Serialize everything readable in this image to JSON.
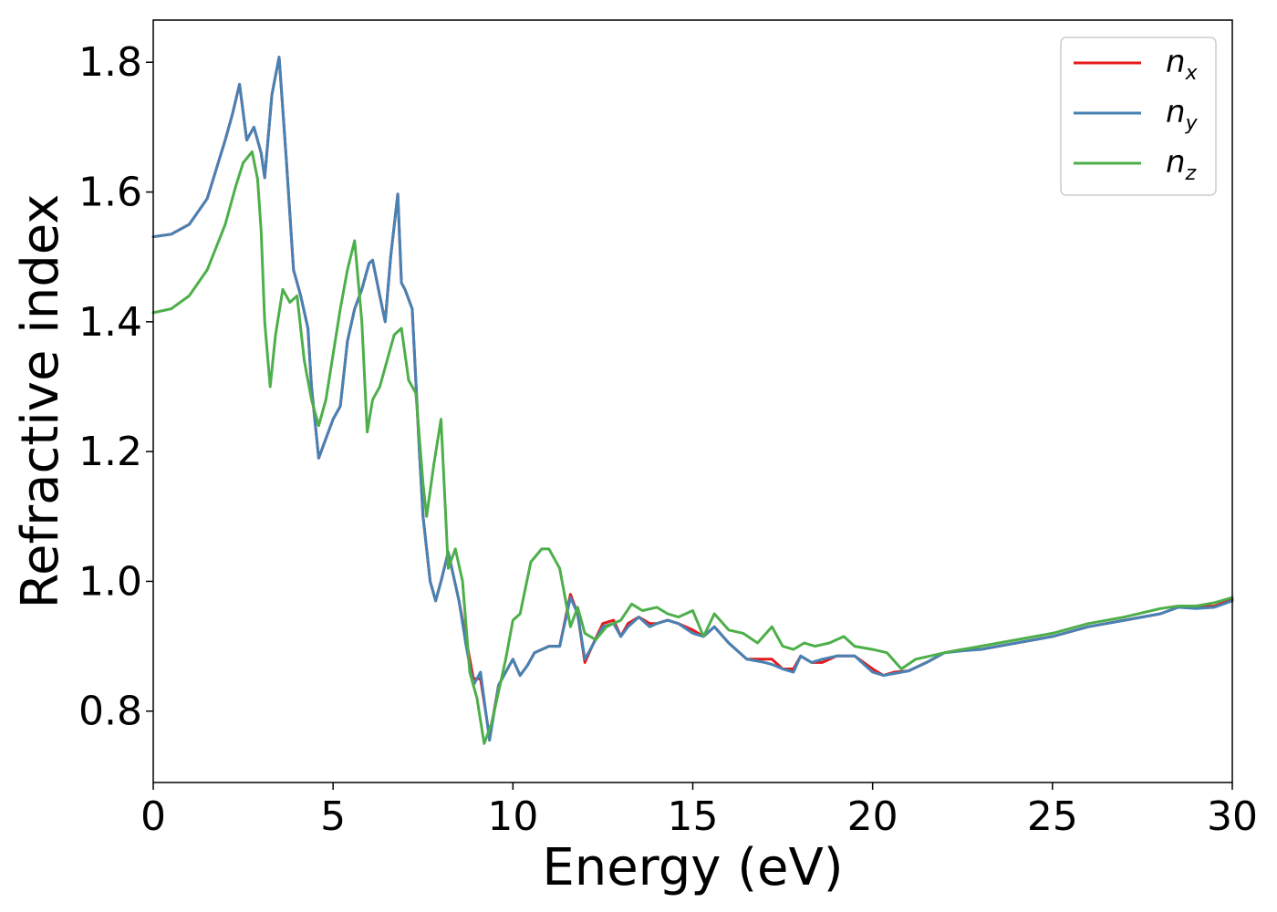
{
  "chart_data": {
    "type": "line",
    "title": "",
    "xlabel": "Energy (eV)",
    "ylabel": "Refractive index",
    "xlim": [
      0,
      30
    ],
    "ylim": [
      0.69,
      1.865
    ],
    "xticks": [
      0,
      5,
      10,
      15,
      20,
      25,
      30
    ],
    "xtick_labels": [
      "0",
      "5",
      "10",
      "15",
      "20",
      "25",
      "30"
    ],
    "yticks": [
      0.8,
      1.0,
      1.2,
      1.4,
      1.6,
      1.8
    ],
    "ytick_labels": [
      "0.8",
      "1.0",
      "1.2",
      "1.4",
      "1.6",
      "1.8"
    ],
    "grid": false,
    "legend_position": "top-right",
    "series": [
      {
        "name": "n_x",
        "legend_main": "n",
        "legend_sub": "x",
        "color": "#e41a1c",
        "x": [
          0,
          0.5,
          1.0,
          1.5,
          2.0,
          2.2,
          2.4,
          2.6,
          2.8,
          3.0,
          3.1,
          3.3,
          3.5,
          3.7,
          3.9,
          4.1,
          4.3,
          4.4,
          4.6,
          4.8,
          5.0,
          5.2,
          5.4,
          5.6,
          5.8,
          6.0,
          6.1,
          6.3,
          6.45,
          6.6,
          6.8,
          6.9,
          7.0,
          7.2,
          7.4,
          7.5,
          7.7,
          7.85,
          8.0,
          8.2,
          8.5,
          8.7,
          8.9,
          9.1,
          9.35,
          9.6,
          9.8,
          10.0,
          10.2,
          10.4,
          10.6,
          11.0,
          11.3,
          11.6,
          11.8,
          12.0,
          12.2,
          12.5,
          12.8,
          13.0,
          13.2,
          13.5,
          13.8,
          14.0,
          14.3,
          14.6,
          15.0,
          15.3,
          15.6,
          16.0,
          16.5,
          17.0,
          17.2,
          17.5,
          17.8,
          18.0,
          18.3,
          18.6,
          19.0,
          19.5,
          20.0,
          20.3,
          20.6,
          21.0,
          21.5,
          22.0,
          22.5,
          23.0,
          24.0,
          25.0,
          26.0,
          27.0,
          28.0,
          28.5,
          29.0,
          29.5,
          30.0
        ],
        "y": [
          1.531,
          1.535,
          1.55,
          1.59,
          1.68,
          1.72,
          1.766,
          1.68,
          1.7,
          1.66,
          1.622,
          1.75,
          1.808,
          1.65,
          1.48,
          1.44,
          1.39,
          1.3,
          1.19,
          1.22,
          1.25,
          1.27,
          1.37,
          1.42,
          1.45,
          1.49,
          1.495,
          1.44,
          1.4,
          1.5,
          1.597,
          1.46,
          1.45,
          1.42,
          1.2,
          1.1,
          1.0,
          0.97,
          1.0,
          1.045,
          0.97,
          0.91,
          0.85,
          0.85,
          0.76,
          0.84,
          0.86,
          0.88,
          0.855,
          0.87,
          0.89,
          0.9,
          0.9,
          0.98,
          0.95,
          0.875,
          0.9,
          0.935,
          0.94,
          0.915,
          0.935,
          0.945,
          0.935,
          0.935,
          0.94,
          0.935,
          0.925,
          0.915,
          0.93,
          0.905,
          0.88,
          0.88,
          0.88,
          0.865,
          0.865,
          0.885,
          0.875,
          0.875,
          0.885,
          0.885,
          0.865,
          0.855,
          0.86,
          0.862,
          0.875,
          0.89,
          0.895,
          0.895,
          0.905,
          0.915,
          0.93,
          0.94,
          0.95,
          0.96,
          0.96,
          0.962,
          0.972
        ]
      },
      {
        "name": "n_y",
        "legend_main": "n",
        "legend_sub": "y",
        "color": "#4682b4",
        "x": [
          0,
          0.5,
          1.0,
          1.5,
          2.0,
          2.2,
          2.4,
          2.6,
          2.8,
          3.0,
          3.1,
          3.3,
          3.5,
          3.7,
          3.9,
          4.1,
          4.3,
          4.4,
          4.6,
          4.8,
          5.0,
          5.2,
          5.4,
          5.6,
          5.8,
          6.0,
          6.1,
          6.3,
          6.45,
          6.6,
          6.8,
          6.9,
          7.0,
          7.2,
          7.4,
          7.5,
          7.7,
          7.85,
          8.0,
          8.2,
          8.5,
          8.7,
          8.9,
          9.1,
          9.35,
          9.6,
          9.8,
          10.0,
          10.2,
          10.4,
          10.6,
          11.0,
          11.3,
          11.6,
          11.8,
          12.0,
          12.2,
          12.5,
          12.8,
          13.0,
          13.2,
          13.5,
          13.8,
          14.0,
          14.3,
          14.6,
          15.0,
          15.3,
          15.6,
          16.0,
          16.5,
          17.0,
          17.2,
          17.5,
          17.8,
          18.0,
          18.3,
          18.6,
          19.0,
          19.5,
          20.0,
          20.3,
          20.6,
          21.0,
          21.5,
          22.0,
          22.5,
          23.0,
          24.0,
          25.0,
          26.0,
          27.0,
          28.0,
          28.5,
          29.0,
          29.5,
          30.0
        ],
        "y": [
          1.531,
          1.535,
          1.55,
          1.59,
          1.68,
          1.72,
          1.766,
          1.68,
          1.7,
          1.66,
          1.622,
          1.75,
          1.808,
          1.65,
          1.48,
          1.44,
          1.39,
          1.3,
          1.19,
          1.22,
          1.25,
          1.27,
          1.37,
          1.42,
          1.45,
          1.49,
          1.495,
          1.44,
          1.4,
          1.5,
          1.597,
          1.46,
          1.45,
          1.42,
          1.2,
          1.1,
          1.0,
          0.97,
          1.0,
          1.045,
          0.97,
          0.9,
          0.84,
          0.86,
          0.755,
          0.84,
          0.86,
          0.88,
          0.855,
          0.87,
          0.89,
          0.9,
          0.9,
          0.975,
          0.95,
          0.88,
          0.9,
          0.93,
          0.935,
          0.915,
          0.93,
          0.945,
          0.93,
          0.935,
          0.94,
          0.935,
          0.92,
          0.915,
          0.93,
          0.905,
          0.88,
          0.875,
          0.872,
          0.865,
          0.86,
          0.885,
          0.875,
          0.88,
          0.885,
          0.885,
          0.86,
          0.855,
          0.858,
          0.862,
          0.875,
          0.89,
          0.893,
          0.895,
          0.905,
          0.915,
          0.93,
          0.94,
          0.95,
          0.96,
          0.958,
          0.96,
          0.97
        ]
      },
      {
        "name": "n_z",
        "legend_main": "n",
        "legend_sub": "z",
        "color": "#4daf4a",
        "x": [
          0,
          0.5,
          1.0,
          1.5,
          2.0,
          2.3,
          2.5,
          2.75,
          2.9,
          3.0,
          3.1,
          3.25,
          3.4,
          3.6,
          3.8,
          4.0,
          4.2,
          4.4,
          4.6,
          4.8,
          5.0,
          5.2,
          5.4,
          5.6,
          5.8,
          5.95,
          6.1,
          6.3,
          6.5,
          6.7,
          6.9,
          7.1,
          7.3,
          7.5,
          7.6,
          7.8,
          8.0,
          8.2,
          8.4,
          8.6,
          8.8,
          9.0,
          9.2,
          9.4,
          9.6,
          9.8,
          10.0,
          10.2,
          10.5,
          10.8,
          11.0,
          11.3,
          11.6,
          11.8,
          12.0,
          12.3,
          12.6,
          13.0,
          13.3,
          13.6,
          14.0,
          14.3,
          14.6,
          15.0,
          15.3,
          15.6,
          16.0,
          16.4,
          16.8,
          17.2,
          17.5,
          17.8,
          18.1,
          18.4,
          18.8,
          19.2,
          19.5,
          20.0,
          20.4,
          20.8,
          21.2,
          21.6,
          22.0,
          22.5,
          23.0,
          24.0,
          25.0,
          26.0,
          27.0,
          28.0,
          28.5,
          29.0,
          29.5,
          30.0
        ],
        "y": [
          1.414,
          1.42,
          1.44,
          1.48,
          1.55,
          1.61,
          1.645,
          1.662,
          1.62,
          1.54,
          1.4,
          1.3,
          1.38,
          1.45,
          1.43,
          1.44,
          1.34,
          1.28,
          1.24,
          1.28,
          1.35,
          1.42,
          1.48,
          1.525,
          1.4,
          1.23,
          1.28,
          1.3,
          1.34,
          1.38,
          1.39,
          1.31,
          1.29,
          1.15,
          1.1,
          1.18,
          1.25,
          1.02,
          1.05,
          1.0,
          0.86,
          0.82,
          0.75,
          0.78,
          0.83,
          0.88,
          0.94,
          0.95,
          1.03,
          1.05,
          1.05,
          1.02,
          0.93,
          0.96,
          0.92,
          0.91,
          0.93,
          0.94,
          0.965,
          0.955,
          0.96,
          0.95,
          0.945,
          0.955,
          0.915,
          0.95,
          0.925,
          0.92,
          0.905,
          0.93,
          0.9,
          0.895,
          0.905,
          0.9,
          0.905,
          0.915,
          0.9,
          0.895,
          0.89,
          0.865,
          0.88,
          0.885,
          0.89,
          0.895,
          0.9,
          0.91,
          0.92,
          0.935,
          0.945,
          0.958,
          0.962,
          0.962,
          0.967,
          0.975
        ]
      }
    ]
  }
}
